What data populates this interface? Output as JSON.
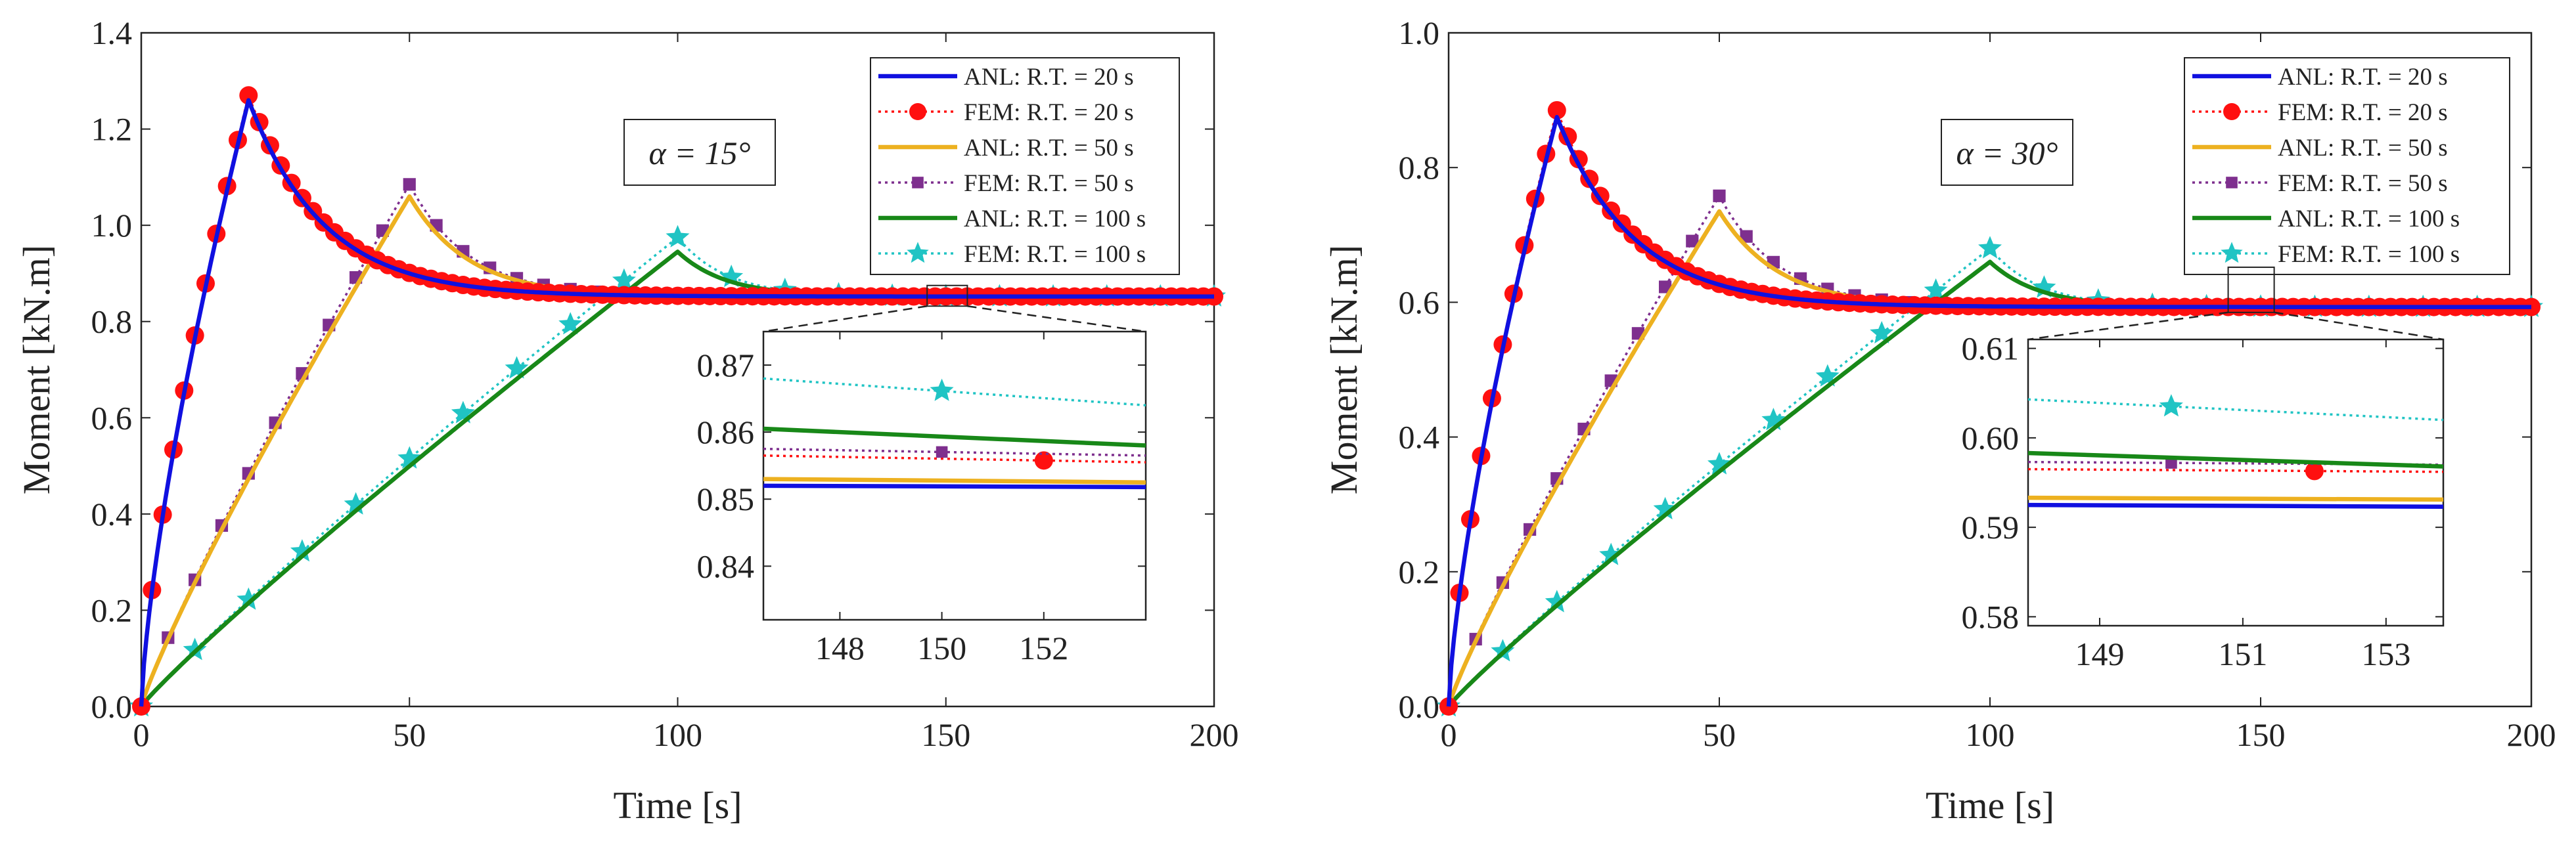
{
  "colors": {
    "anl20": "#1010e0",
    "fem20": "#ff1010",
    "anl50": "#edb120",
    "fem50": "#7e2f8e",
    "anl100": "#188818",
    "fem100": "#20c4c4"
  },
  "chart_data": [
    {
      "type": "line",
      "annotation": "α = 15°",
      "xlabel": "Time [s]",
      "ylabel": "Moment [kN.m]",
      "xlim": [
        0,
        200
      ],
      "ylim": [
        0,
        1.4
      ],
      "xticks": [
        "0",
        "50",
        "100",
        "150",
        "200"
      ],
      "yticks": [
        "0.0",
        "0.2",
        "0.4",
        "0.6",
        "0.8",
        "1.0",
        "1.2",
        "1.4"
      ],
      "legend": [
        "ANL: R.T. = 20 s",
        "FEM: R.T. = 20 s",
        "ANL: R.T. = 50 s",
        "FEM: R.T. = 50 s",
        "ANL: R.T. = 100 s",
        "FEM: R.T. = 100 s"
      ],
      "legend_position": "top-right",
      "final_value": 0.852,
      "series": [
        {
          "name": "ANL: R.T. = 20 s",
          "style": "solid",
          "ramp_time": 20,
          "peak": 1.26
        },
        {
          "name": "FEM: R.T. = 20 s",
          "style": "dotted-circle",
          "ramp_time": 20,
          "peak": 1.27
        },
        {
          "name": "ANL: R.T. = 50 s",
          "style": "solid",
          "ramp_time": 50,
          "peak": 1.06
        },
        {
          "name": "FEM: R.T. = 50 s",
          "style": "dotted-square",
          "ramp_time": 50,
          "peak": 1.085
        },
        {
          "name": "ANL: R.T. = 100 s",
          "style": "solid",
          "ramp_time": 100,
          "peak": 0.945
        },
        {
          "name": "FEM: R.T. = 100 s",
          "style": "dotted-star",
          "ramp_time": 100,
          "peak": 0.975
        }
      ],
      "inset": {
        "xlim": [
          146.5,
          154
        ],
        "ylim": [
          0.832,
          0.875
        ],
        "xticks": [
          "148",
          "150",
          "152"
        ],
        "yticks": [
          "0.84",
          "0.85",
          "0.86",
          "0.87"
        ],
        "zoom_box_x": [
          146.5,
          154
        ],
        "zoom_box_y": [
          0.832,
          0.875
        ],
        "lines": [
          {
            "series": 0,
            "y": [
              0.852,
              0.8518
            ]
          },
          {
            "series": 1,
            "y": [
              0.8565,
              0.8555
            ],
            "marker_x": 152
          },
          {
            "series": 2,
            "y": [
              0.853,
              0.8525
            ]
          },
          {
            "series": 3,
            "y": [
              0.8575,
              0.8565
            ],
            "marker_x": 150
          },
          {
            "series": 4,
            "y": [
              0.8605,
              0.858
            ]
          },
          {
            "series": 5,
            "y": [
              0.868,
              0.864
            ],
            "marker_x": 150
          }
        ]
      }
    },
    {
      "type": "line",
      "annotation": "α = 30°",
      "xlabel": "Time [s]",
      "ylabel": "Moment [kN.m]",
      "xlim": [
        0,
        200
      ],
      "ylim": [
        0,
        1.0
      ],
      "xticks": [
        "0",
        "50",
        "100",
        "150",
        "200"
      ],
      "yticks": [
        "0.0",
        "0.2",
        "0.4",
        "0.6",
        "0.8",
        "1.0"
      ],
      "legend": [
        "ANL: R.T. = 20 s",
        "FEM: R.T. = 20 s",
        "ANL: R.T. = 50 s",
        "FEM: R.T. = 50 s",
        "ANL: R.T. = 100 s",
        "FEM: R.T. = 100 s"
      ],
      "legend_position": "top-right",
      "final_value": 0.593,
      "series": [
        {
          "name": "ANL: R.T. = 20 s",
          "style": "solid",
          "ramp_time": 20,
          "peak": 0.875
        },
        {
          "name": "FEM: R.T. = 20 s",
          "style": "dotted-circle",
          "ramp_time": 20,
          "peak": 0.885
        },
        {
          "name": "ANL: R.T. = 50 s",
          "style": "solid",
          "ramp_time": 50,
          "peak": 0.735
        },
        {
          "name": "FEM: R.T. = 50 s",
          "style": "dotted-square",
          "ramp_time": 50,
          "peak": 0.758
        },
        {
          "name": "ANL: R.T. = 100 s",
          "style": "solid",
          "ramp_time": 100,
          "peak": 0.66
        },
        {
          "name": "FEM: R.T. = 100 s",
          "style": "dotted-star",
          "ramp_time": 100,
          "peak": 0.68
        }
      ],
      "inset": {
        "xlim": [
          148,
          153.8
        ],
        "ylim": [
          0.579,
          0.611
        ],
        "xticks": [
          "149",
          "151",
          "153"
        ],
        "yticks": [
          "0.58",
          "0.59",
          "0.60",
          "0.61"
        ],
        "zoom_box_x": [
          144,
          152.5
        ],
        "zoom_box_y": [
          0.585,
          0.652
        ],
        "lines": [
          {
            "series": 0,
            "y": [
              0.5925,
              0.5923
            ]
          },
          {
            "series": 1,
            "y": [
              0.5965,
              0.5962
            ],
            "marker_x": 152
          },
          {
            "series": 2,
            "y": [
              0.5933,
              0.5931
            ]
          },
          {
            "series": 3,
            "y": [
              0.5973,
              0.597
            ],
            "marker_x": 150
          },
          {
            "series": 4,
            "y": [
              0.5983,
              0.5968
            ]
          },
          {
            "series": 5,
            "y": [
              0.6043,
              0.602
            ],
            "marker_x": 150
          }
        ]
      }
    }
  ]
}
